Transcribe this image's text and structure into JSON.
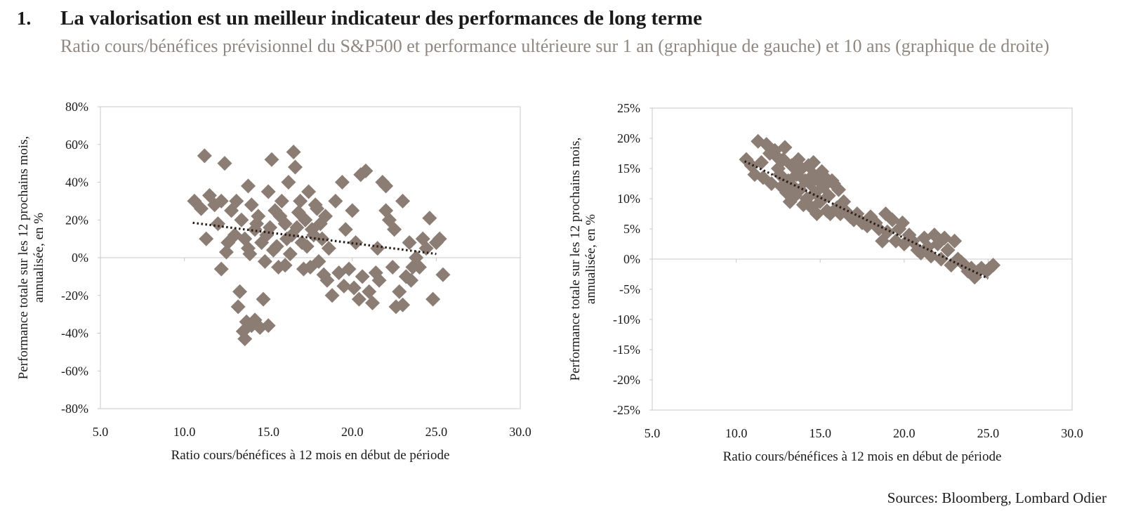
{
  "header": {
    "number": "1.",
    "title": "La valorisation est un meilleur indicateur des performances de long terme",
    "subtitle": "Ratio cours/bénéfices prévisionnel du S&P500 et performance ultérieure sur 1 an (graphique de gauche) et 10 ans (graphique de droite)"
  },
  "source": "Sources: Bloomberg, Lombard Odier",
  "colors": {
    "marker": "#8c7d74",
    "trendline": "#2a1e1a",
    "axis": "#c8c8c8"
  },
  "chart_data": [
    {
      "type": "scatter",
      "title": "",
      "xlabel": "Ratio cours/bénéfices à 12 mois en début de période",
      "ylabel": "Performance totale sur les 12 prochains mois, annualisée, en %",
      "xlim": [
        5,
        30
      ],
      "ylim": [
        -80,
        80
      ],
      "x_ticks": [
        "5.0",
        "10.0",
        "15.0",
        "20.0",
        "25.0",
        "30.0"
      ],
      "y_ticks": [
        "-80%",
        "-60%",
        "-40%",
        "-20%",
        "0%",
        "20%",
        "40%",
        "60%",
        "80%"
      ],
      "grid": false,
      "trendline": {
        "x": [
          10.5,
          25.0
        ],
        "y": [
          18.5,
          2.0
        ]
      },
      "points": [
        [
          10.6,
          30
        ],
        [
          11.0,
          26
        ],
        [
          11.2,
          54
        ],
        [
          11.3,
          10
        ],
        [
          11.5,
          33
        ],
        [
          11.8,
          28
        ],
        [
          12.0,
          18
        ],
        [
          12.2,
          30
        ],
        [
          12.4,
          50
        ],
        [
          12.5,
          3
        ],
        [
          12.2,
          -6
        ],
        [
          12.8,
          25
        ],
        [
          13.0,
          12
        ],
        [
          13.2,
          -26
        ],
        [
          13.3,
          -18
        ],
        [
          13.5,
          -39
        ],
        [
          13.6,
          -43
        ],
        [
          13.7,
          -34
        ],
        [
          13.8,
          38
        ],
        [
          14.0,
          -36
        ],
        [
          14.2,
          -33
        ],
        [
          14.5,
          -37
        ],
        [
          14.7,
          -22
        ],
        [
          15.0,
          -36
        ],
        [
          13.4,
          20
        ],
        [
          13.6,
          10
        ],
        [
          13.8,
          5
        ],
        [
          14.0,
          28
        ],
        [
          14.2,
          15
        ],
        [
          14.4,
          22
        ],
        [
          14.6,
          8
        ],
        [
          14.8,
          -2
        ],
        [
          15.0,
          35
        ],
        [
          15.1,
          16
        ],
        [
          15.2,
          52
        ],
        [
          15.4,
          25
        ],
        [
          15.5,
          6
        ],
        [
          15.6,
          -5
        ],
        [
          15.8,
          30
        ],
        [
          16.0,
          18
        ],
        [
          16.2,
          40
        ],
        [
          16.4,
          12
        ],
        [
          16.5,
          56
        ],
        [
          16.6,
          48
        ],
        [
          16.8,
          24
        ],
        [
          17.0,
          8
        ],
        [
          17.2,
          20
        ],
        [
          17.4,
          35
        ],
        [
          17.5,
          -5
        ],
        [
          17.6,
          15
        ],
        [
          17.8,
          28
        ],
        [
          18.0,
          -2
        ],
        [
          18.2,
          10
        ],
        [
          18.4,
          22
        ],
        [
          18.5,
          -12
        ],
        [
          18.6,
          5
        ],
        [
          18.8,
          -20
        ],
        [
          19.0,
          30
        ],
        [
          19.2,
          -8
        ],
        [
          19.4,
          40
        ],
        [
          19.5,
          -15
        ],
        [
          19.6,
          15
        ],
        [
          19.8,
          -6
        ],
        [
          20.0,
          25
        ],
        [
          20.1,
          -16
        ],
        [
          20.2,
          8
        ],
        [
          20.4,
          -22
        ],
        [
          20.5,
          44
        ],
        [
          20.6,
          -10
        ],
        [
          20.8,
          46
        ],
        [
          21.0,
          -18
        ],
        [
          21.2,
          -24
        ],
        [
          21.4,
          -8
        ],
        [
          21.5,
          5
        ],
        [
          21.6,
          -12
        ],
        [
          21.8,
          40
        ],
        [
          22.0,
          38
        ],
        [
          22.0,
          25
        ],
        [
          22.2,
          20
        ],
        [
          22.4,
          -5
        ],
        [
          22.5,
          15
        ],
        [
          22.6,
          -26
        ],
        [
          22.8,
          -18
        ],
        [
          23.0,
          30
        ],
        [
          23.0,
          -25
        ],
        [
          23.2,
          -10
        ],
        [
          23.4,
          8
        ],
        [
          23.5,
          -12
        ],
        [
          23.6,
          -5
        ],
        [
          23.8,
          0
        ],
        [
          24.0,
          -5
        ],
        [
          24.2,
          10
        ],
        [
          24.4,
          5
        ],
        [
          24.6,
          21
        ],
        [
          24.8,
          -22
        ],
        [
          25.0,
          8
        ],
        [
          25.2,
          10
        ],
        [
          25.4,
          -9
        ],
        [
          14.3,
          18
        ],
        [
          14.9,
          12
        ],
        [
          15.3,
          4
        ],
        [
          15.7,
          22
        ],
        [
          16.1,
          10
        ],
        [
          16.3,
          2
        ],
        [
          16.7,
          16
        ],
        [
          16.9,
          30
        ],
        [
          17.1,
          -6
        ],
        [
          17.3,
          6
        ],
        [
          17.7,
          12
        ],
        [
          18.1,
          18
        ],
        [
          13.1,
          30
        ],
        [
          12.6,
          8
        ],
        [
          13.9,
          2
        ],
        [
          16.0,
          -4
        ],
        [
          17.9,
          26
        ],
        [
          18.3,
          -9
        ]
      ]
    },
    {
      "type": "scatter",
      "title": "",
      "xlabel": "Ratio cours/bénéfices à 12 mois en début de période",
      "ylabel": "Performance totale sur les 12 prochains mois, annualisée, en %",
      "xlim": [
        5,
        30
      ],
      "ylim": [
        -25,
        25
      ],
      "x_ticks": [
        "5.0",
        "10.0",
        "15.0",
        "20.0",
        "25.0",
        "30.0"
      ],
      "y_ticks": [
        "-25%",
        "-20%",
        "-15%",
        "-10%",
        "-5%",
        "0%",
        "5%",
        "10%",
        "15%",
        "20%",
        "25%"
      ],
      "grid": false,
      "trendline": {
        "x": [
          10.5,
          25.0
        ],
        "y": [
          16.2,
          -3.2
        ]
      },
      "points": [
        [
          10.6,
          16.5
        ],
        [
          10.9,
          15.5
        ],
        [
          11.1,
          14.0
        ],
        [
          11.3,
          19.5
        ],
        [
          11.5,
          16.0
        ],
        [
          11.6,
          13.5
        ],
        [
          11.8,
          19.0
        ],
        [
          12.0,
          17.5
        ],
        [
          12.1,
          12.5
        ],
        [
          12.3,
          18.0
        ],
        [
          12.5,
          15.0
        ],
        [
          12.6,
          14.0
        ],
        [
          12.8,
          16.5
        ],
        [
          12.9,
          18.5
        ],
        [
          13.0,
          11.0
        ],
        [
          13.1,
          13.0
        ],
        [
          13.3,
          15.5
        ],
        [
          13.4,
          12.0
        ],
        [
          13.5,
          10.5
        ],
        [
          13.6,
          14.0
        ],
        [
          13.8,
          11.5
        ],
        [
          13.9,
          15.0
        ],
        [
          14.0,
          9.0
        ],
        [
          14.1,
          13.0
        ],
        [
          14.2,
          10.0
        ],
        [
          14.4,
          12.5
        ],
        [
          14.5,
          8.5
        ],
        [
          14.6,
          14.0
        ],
        [
          14.7,
          11.0
        ],
        [
          14.8,
          7.5
        ],
        [
          14.9,
          13.0
        ],
        [
          15.0,
          9.5
        ],
        [
          15.2,
          12.0
        ],
        [
          15.4,
          8.0
        ],
        [
          15.5,
          10.5
        ],
        [
          15.6,
          7.5
        ],
        [
          15.8,
          12.5
        ],
        [
          16.0,
          8.5
        ],
        [
          16.2,
          7.5
        ],
        [
          16.5,
          8.0
        ],
        [
          16.8,
          7.0
        ],
        [
          17.0,
          6.5
        ],
        [
          17.2,
          7.5
        ],
        [
          17.5,
          6.0
        ],
        [
          17.8,
          5.5
        ],
        [
          18.0,
          7.0
        ],
        [
          18.3,
          6.0
        ],
        [
          18.5,
          5.0
        ],
        [
          18.7,
          3.0
        ],
        [
          18.9,
          7.5
        ],
        [
          19.0,
          4.5
        ],
        [
          19.3,
          6.5
        ],
        [
          19.5,
          3.0
        ],
        [
          19.7,
          5.0
        ],
        [
          19.9,
          6.0
        ],
        [
          20.0,
          2.5
        ],
        [
          20.3,
          4.0
        ],
        [
          20.5,
          3.0
        ],
        [
          20.8,
          1.5
        ],
        [
          21.0,
          1.0
        ],
        [
          21.2,
          3.5
        ],
        [
          21.4,
          2.0
        ],
        [
          21.6,
          0.5
        ],
        [
          21.8,
          4.0
        ],
        [
          22.0,
          2.5
        ],
        [
          22.2,
          0.0
        ],
        [
          22.4,
          3.5
        ],
        [
          22.6,
          1.5
        ],
        [
          22.8,
          -1.0
        ],
        [
          23.0,
          3.0
        ],
        [
          23.2,
          0.0
        ],
        [
          23.4,
          -0.5
        ],
        [
          23.6,
          -1.0
        ],
        [
          23.8,
          -2.0
        ],
        [
          24.0,
          -1.5
        ],
        [
          24.2,
          -3.0
        ],
        [
          24.4,
          -2.0
        ],
        [
          24.6,
          -1.5
        ],
        [
          24.9,
          -2.0
        ],
        [
          25.1,
          -1.5
        ],
        [
          25.3,
          -1.0
        ],
        [
          13.7,
          16.5
        ],
        [
          14.3,
          15.5
        ],
        [
          15.1,
          14.5
        ],
        [
          15.3,
          13.5
        ],
        [
          15.7,
          13.0
        ],
        [
          16.1,
          11.5
        ],
        [
          14.6,
          16.0
        ],
        [
          12.4,
          17.0
        ],
        [
          12.7,
          12.0
        ],
        [
          13.2,
          9.5
        ],
        [
          16.4,
          9.5
        ]
      ]
    }
  ]
}
